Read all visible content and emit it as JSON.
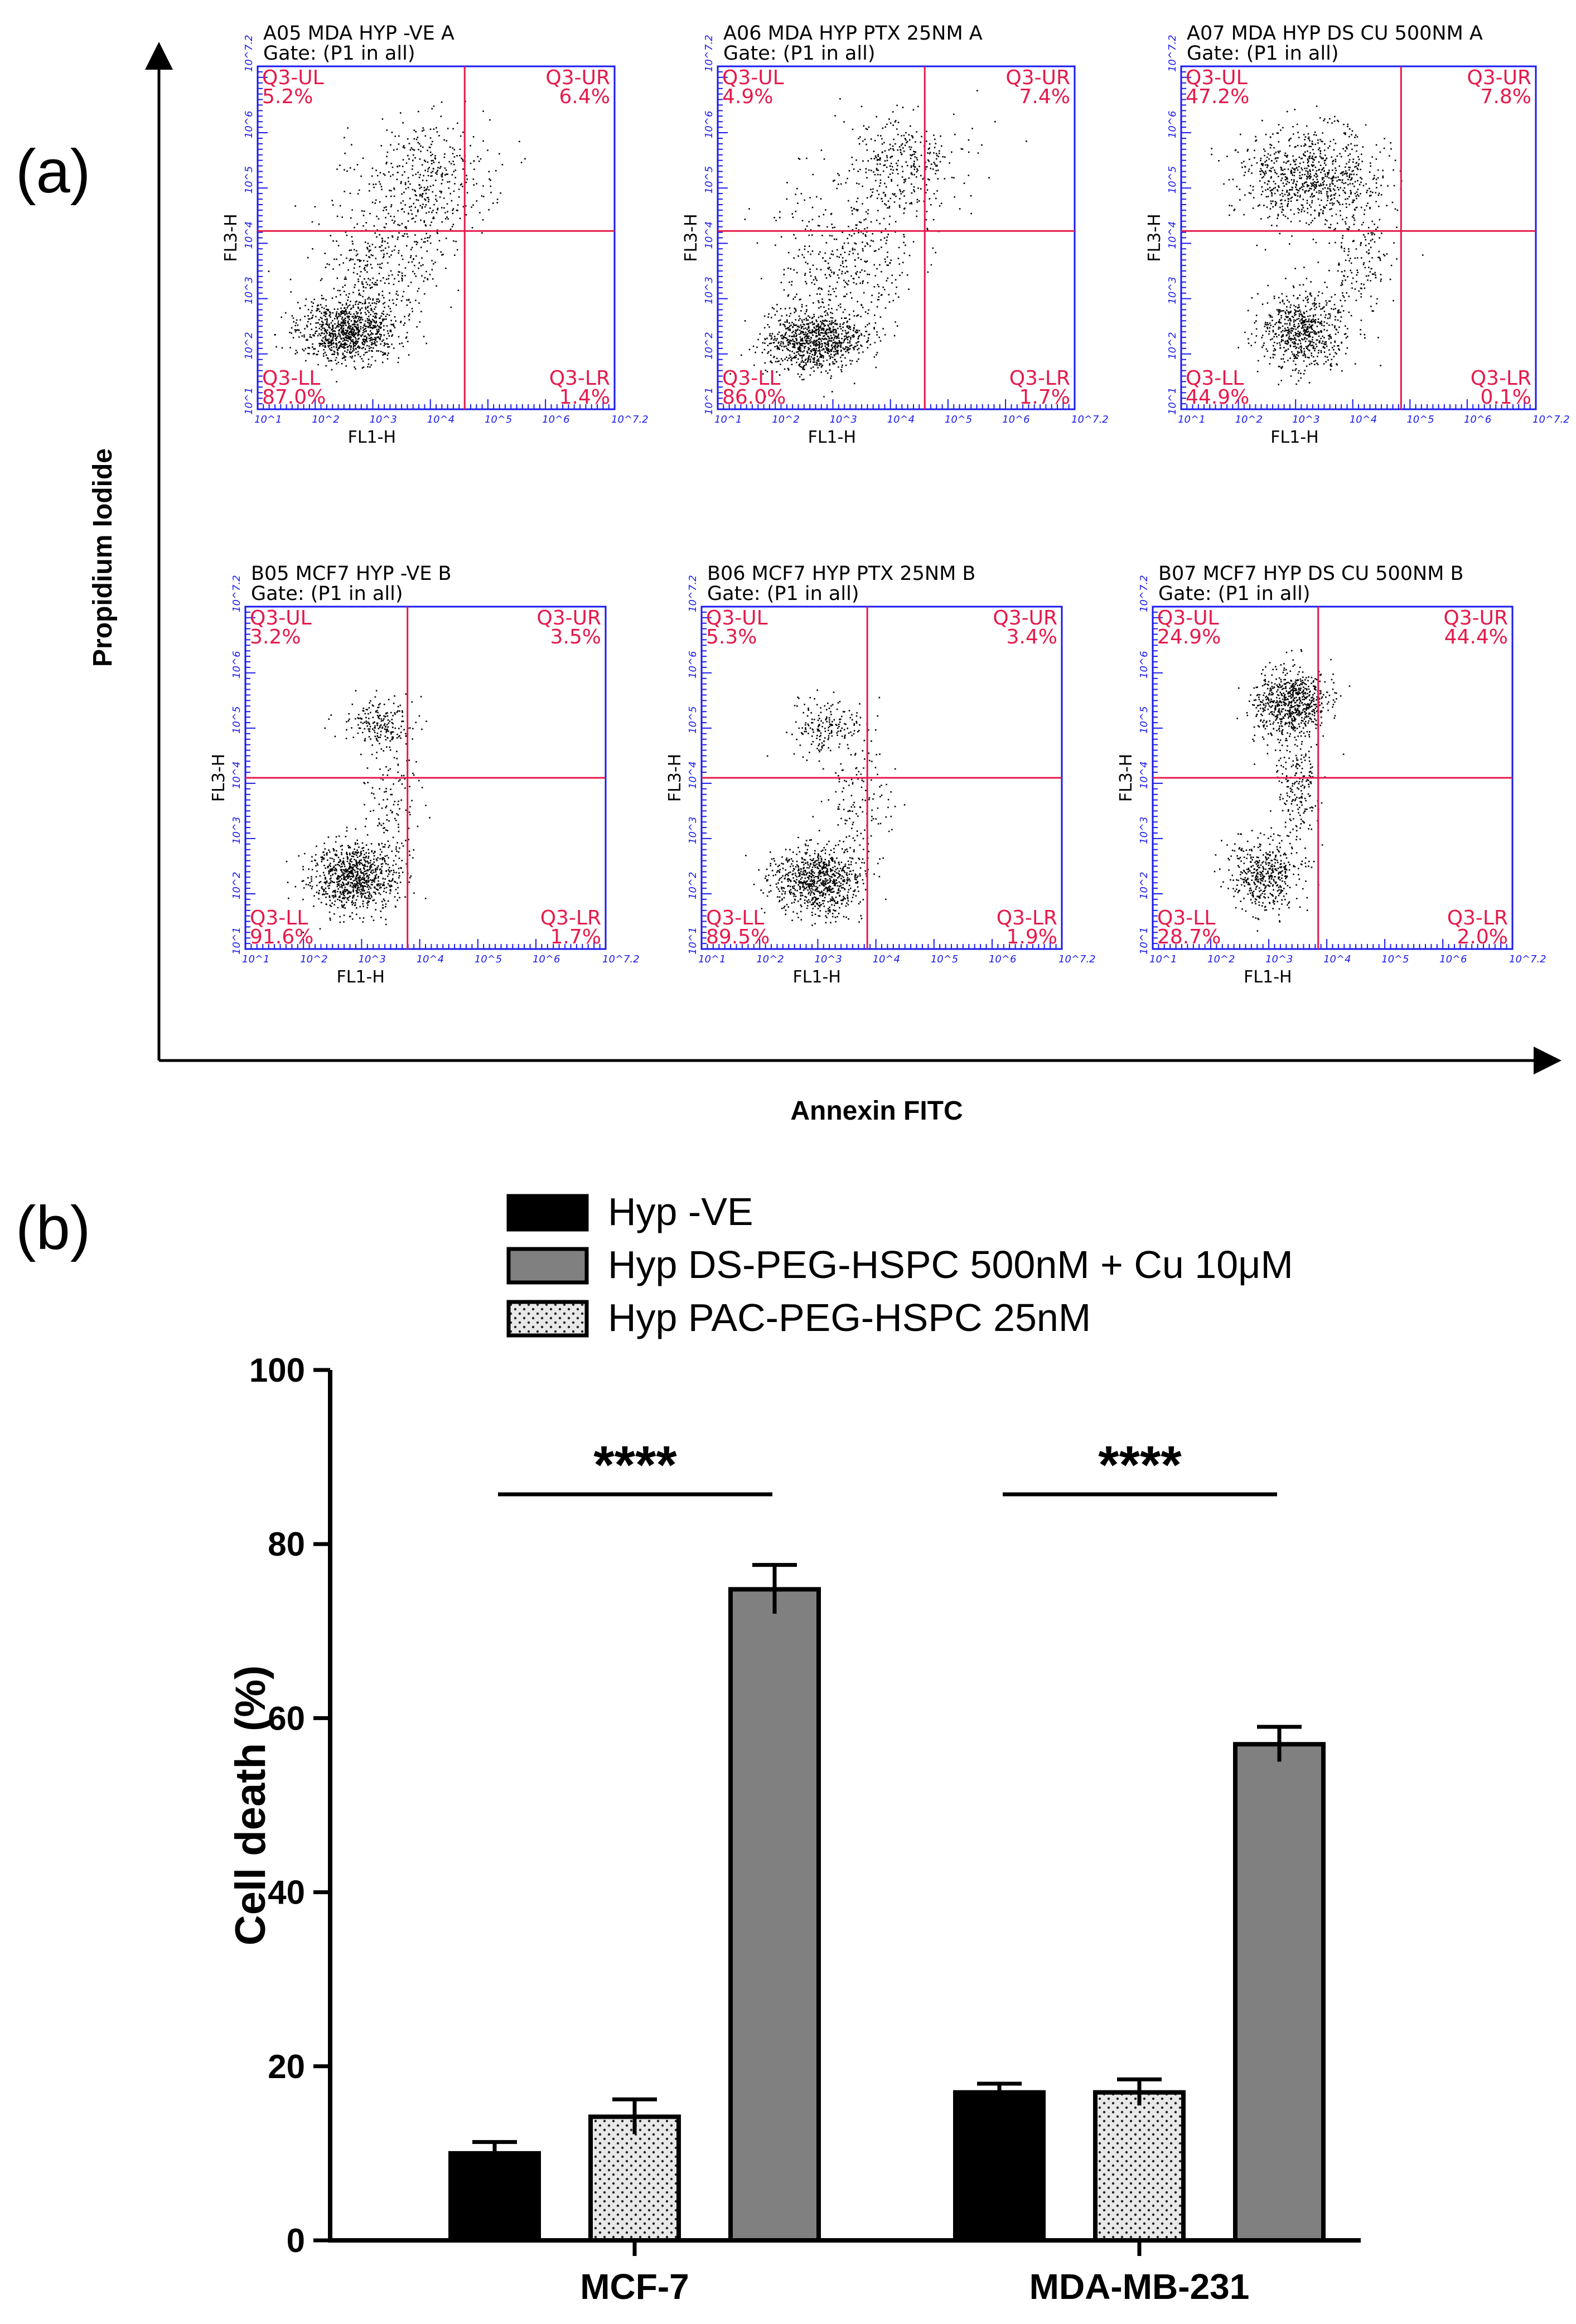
{
  "panel_a": {
    "label": "(a)",
    "y_title": "Propidium Iodide",
    "x_title": "Annexin FITC",
    "gate_text": "Gate: (P1 in all)",
    "x_channel": "FL1-H",
    "y_channel": "FL3-H",
    "tick_labels": [
      "10^1",
      "10^2",
      "10^3",
      "10^4",
      "10^5",
      "10^6",
      "10^7.2"
    ],
    "plots": [
      {
        "title": "A05 MDA HYP -VE A",
        "quadrants": {
          "UL": {
            "name": "Q3-UL",
            "pct": "5.2%"
          },
          "UR": {
            "name": "Q3-UR",
            "pct": "6.4%"
          },
          "LL": {
            "name": "Q3-LL",
            "pct": "87.0%"
          },
          "LR": {
            "name": "Q3-LR",
            "pct": "1.4%"
          }
        }
      },
      {
        "title": "A06 MDA HYP PTX 25NM A",
        "quadrants": {
          "UL": {
            "name": "Q3-UL",
            "pct": "4.9%"
          },
          "UR": {
            "name": "Q3-UR",
            "pct": "7.4%"
          },
          "LL": {
            "name": "Q3-LL",
            "pct": "86.0%"
          },
          "LR": {
            "name": "Q3-LR",
            "pct": "1.7%"
          }
        }
      },
      {
        "title": "A07 MDA HYP DS CU 500NM A",
        "quadrants": {
          "UL": {
            "name": "Q3-UL",
            "pct": "47.2%"
          },
          "UR": {
            "name": "Q3-UR",
            "pct": "7.8%"
          },
          "LL": {
            "name": "Q3-LL",
            "pct": "44.9%"
          },
          "LR": {
            "name": "Q3-LR",
            "pct": "0.1%"
          }
        }
      },
      {
        "title": "B05 MCF7 HYP -VE B",
        "quadrants": {
          "UL": {
            "name": "Q3-UL",
            "pct": "3.2%"
          },
          "UR": {
            "name": "Q3-UR",
            "pct": "3.5%"
          },
          "LL": {
            "name": "Q3-LL",
            "pct": "91.6%"
          },
          "LR": {
            "name": "Q3-LR",
            "pct": "1.7%"
          }
        }
      },
      {
        "title": "B06 MCF7 HYP PTX 25NM B",
        "quadrants": {
          "UL": {
            "name": "Q3-UL",
            "pct": "5.3%"
          },
          "UR": {
            "name": "Q3-UR",
            "pct": "3.4%"
          },
          "LL": {
            "name": "Q3-LL",
            "pct": "89.5%"
          },
          "LR": {
            "name": "Q3-LR",
            "pct": "1.9%"
          }
        }
      },
      {
        "title": "B07 MCF7 HYP DS CU 500NM B",
        "quadrants": {
          "UL": {
            "name": "Q3-UL",
            "pct": "24.9%"
          },
          "UR": {
            "name": "Q3-UR",
            "pct": "44.4%"
          },
          "LL": {
            "name": "Q3-LL",
            "pct": "28.7%"
          },
          "LR": {
            "name": "Q3-LR",
            "pct": "2.0%"
          }
        }
      }
    ]
  },
  "panel_b": {
    "label": "(b)"
  },
  "colors": {
    "hyp_ve": "#000000",
    "ds_cu": "#808080",
    "pac": "#e6e6e6",
    "quad_line": "#e6194b",
    "flow_axis": "#1a1aee"
  },
  "chart_data": {
    "type": "bar",
    "title": "",
    "xlabel": "",
    "ylabel": "Cell death (%)",
    "ylim": [
      0,
      100
    ],
    "yticks": [
      0,
      20,
      40,
      60,
      80,
      100
    ],
    "categories": [
      "MCF-7",
      "MDA-MB-231"
    ],
    "legend_position": "top",
    "series": [
      {
        "name": "Hyp -VE",
        "fill": "solid-black",
        "values": [
          10.0,
          17.0
        ],
        "errors": [
          1.3,
          1.0
        ]
      },
      {
        "name": "Hyp PAC-PEG-HSPC 25nM",
        "fill": "dotted-light",
        "values": [
          14.2,
          17.0
        ],
        "errors": [
          2.0,
          1.5
        ]
      },
      {
        "name": "Hyp DS-PEG-HSPC 500nM + Cu 10μM",
        "fill": "solid-grey",
        "values": [
          74.8,
          57.0
        ],
        "errors": [
          2.8,
          2.0
        ]
      }
    ],
    "legend_order": [
      0,
      2,
      1
    ],
    "significance": [
      {
        "category": "MCF-7",
        "label": "****"
      },
      {
        "category": "MDA-MB-231",
        "label": "****"
      }
    ]
  }
}
